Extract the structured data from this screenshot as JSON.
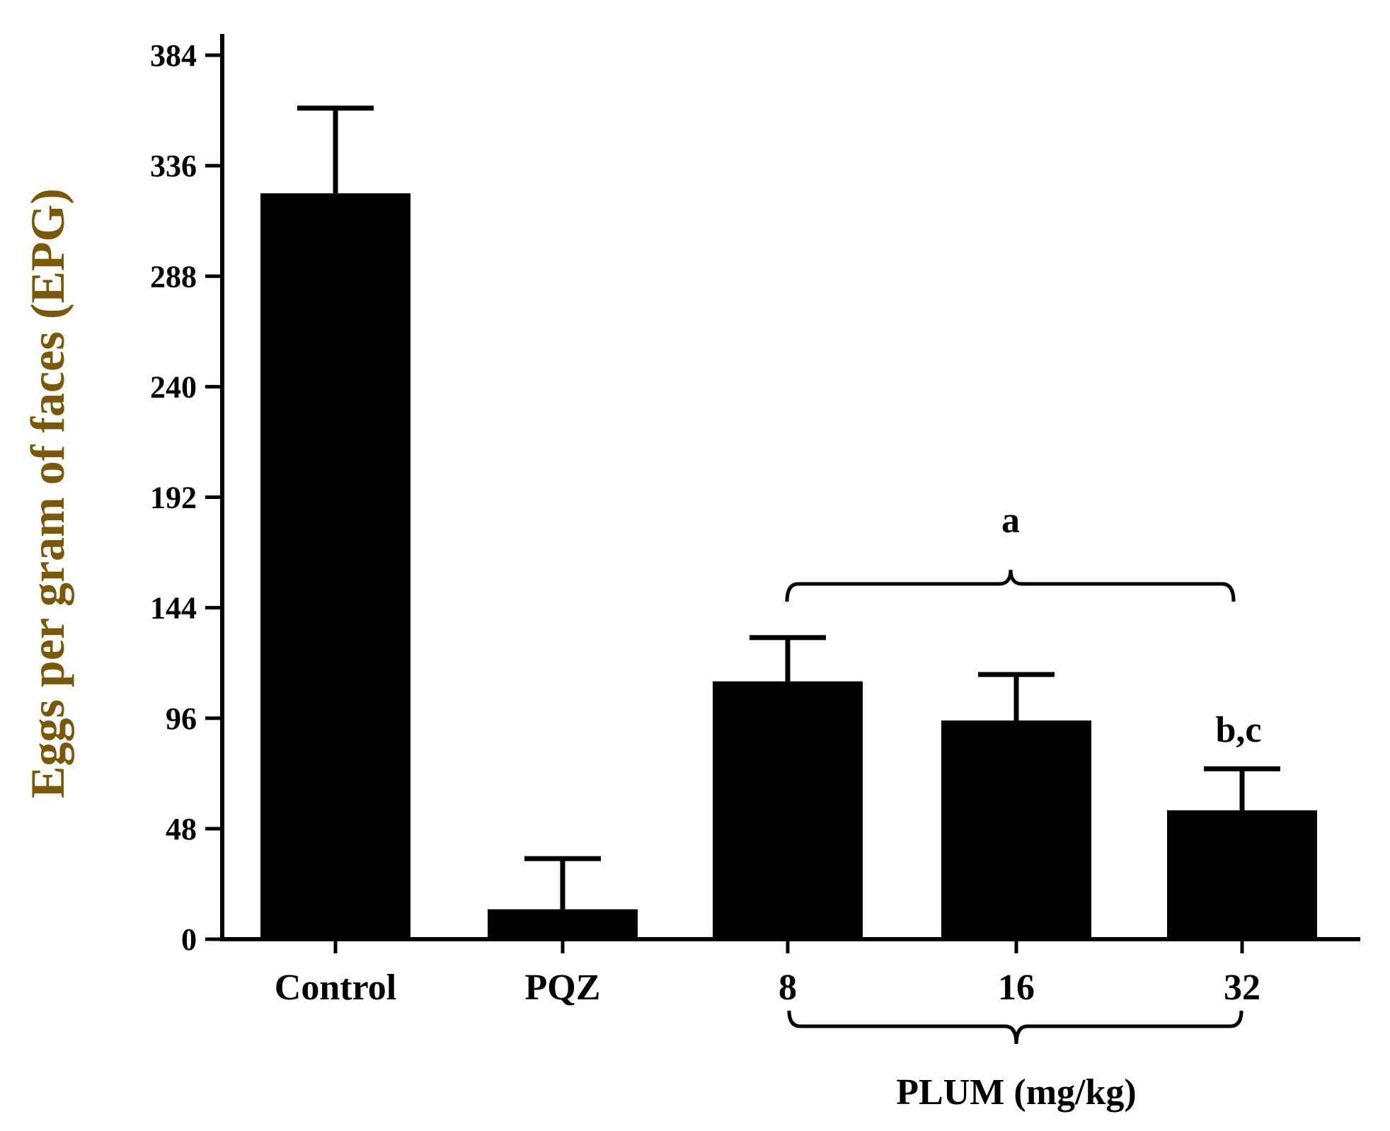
{
  "chart_data": {
    "type": "bar",
    "title": "",
    "xlabel": "",
    "ylabel": "Eggs per gram of faces (EPG)",
    "ylim": [
      0,
      384
    ],
    "yticks": [
      0,
      48,
      96,
      144,
      192,
      240,
      288,
      336,
      384
    ],
    "ytick_labels": [
      "0",
      "48",
      "96",
      "144",
      "192",
      "240",
      "288",
      "336",
      "384"
    ],
    "categories": [
      "Control",
      "PQZ",
      "8",
      "16",
      "32"
    ],
    "values": [
      324,
      13,
      112,
      95,
      56
    ],
    "errors": [
      37,
      22,
      19,
      20,
      18
    ],
    "group_bracket": {
      "label": "PLUM (mg/kg)",
      "from_category": "8",
      "to_category": "32"
    },
    "significance": [
      {
        "label": "a",
        "from_category": "8",
        "to_category": "32"
      },
      {
        "label": "b,c",
        "category": "32"
      }
    ],
    "colors": {
      "bar": "#000000",
      "ylabel": "#7a5808",
      "axis": "#000000",
      "text": "#000000"
    }
  }
}
